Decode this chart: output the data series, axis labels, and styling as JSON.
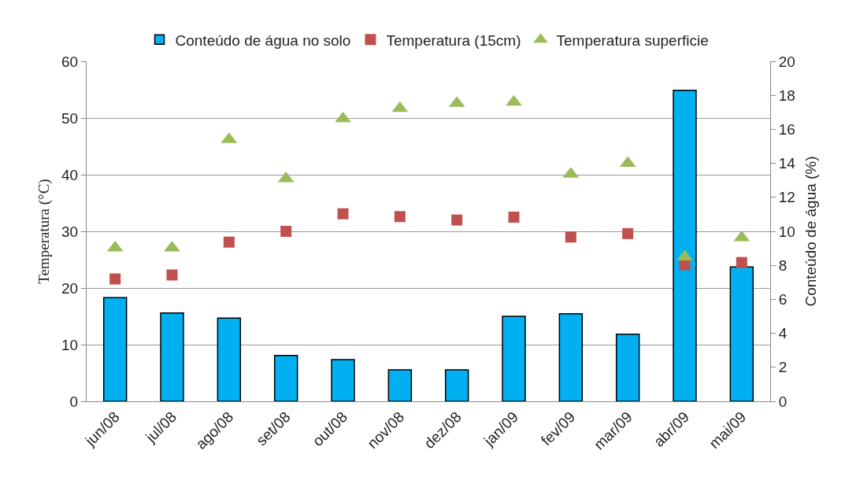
{
  "chart_data": {
    "type": "bar",
    "categories": [
      "jun/08",
      "jul/08",
      "ago/08",
      "set/08",
      "out/08",
      "nov/08",
      "dez/08",
      "jan/09",
      "fev/09",
      "mar/09",
      "abr/09",
      "mai/09"
    ],
    "series": [
      {
        "name": "Conteúdo de água no solo",
        "axis": "y2",
        "color": "#00b0f0",
        "values": [
          6.1,
          5.2,
          4.9,
          2.7,
          2.45,
          1.85,
          1.85,
          5.0,
          5.15,
          3.95,
          18.3,
          7.9
        ]
      },
      {
        "name": "Temperatura (15cm)",
        "type": "scatter",
        "marker": "square",
        "color": "#c0504d",
        "values": [
          21.6,
          22.3,
          28.1,
          30.0,
          33.1,
          32.6,
          32.0,
          32.5,
          29.0,
          29.6,
          24.1,
          24.5
        ]
      },
      {
        "name": "Temperatura superficie",
        "type": "scatter",
        "marker": "triangle",
        "color": "#9bbb59",
        "values": [
          27.1,
          27.1,
          46.2,
          39.3,
          49.9,
          51.7,
          52.6,
          52.8,
          40.1,
          42.0,
          25.5,
          28.9
        ]
      }
    ],
    "ylabel": "Temperatura (°C)",
    "y2label": "Conteúdo de água (%)",
    "ylim": [
      0,
      60
    ],
    "yticks": [
      0,
      10,
      20,
      30,
      40,
      50,
      60
    ],
    "y2lim": [
      0,
      20
    ],
    "y2ticks": [
      0,
      2,
      4,
      6,
      8,
      10,
      12,
      14,
      16,
      18,
      20
    ],
    "grid": "y",
    "legend": "top"
  }
}
